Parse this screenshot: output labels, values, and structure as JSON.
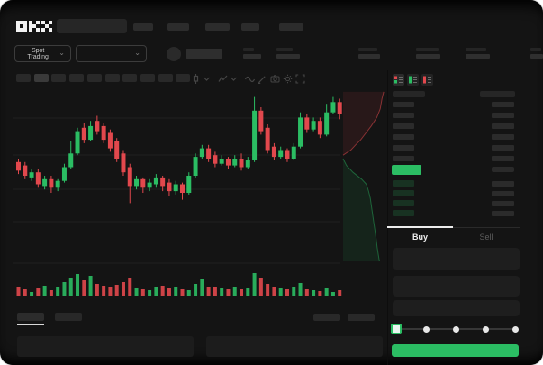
{
  "app": {
    "brand": "OKX",
    "theme": "dark",
    "accent_green": "#2bbd63",
    "accent_red": "#e2484d"
  },
  "header": {
    "logo": "OKX",
    "search_placeholder": "",
    "nav_placeholder_count": 5
  },
  "ticker_bar": {
    "market_selector_label": "Spot Trading",
    "pair_selector_value": "",
    "stat_placeholder_count": 6
  },
  "chart_toolbar": {
    "timeframe_slots": 10,
    "active_slot_index": 1,
    "icons": [
      "candle-type-icon",
      "chevron-down-icon",
      "indicators-icon",
      "chevron-down-icon",
      "line-tool-icon",
      "draw-icon",
      "camera-icon",
      "settings-icon",
      "fullscreen-icon"
    ]
  },
  "order_book": {
    "view_icons": [
      "combined-book-icon",
      "bids-only-icon",
      "asks-only-icon"
    ],
    "ask_row_count": 6,
    "bid_row_count": 4,
    "last_price": {
      "highlighted": true,
      "highlight_color": "#2bbd63"
    }
  },
  "trade_form": {
    "tabs": [
      {
        "label": "Buy",
        "active": true
      },
      {
        "label": "Sell",
        "active": false
      }
    ],
    "field_count": 3,
    "slider": {
      "steps": 5,
      "value_step": 0
    },
    "submit_label": ""
  },
  "bottom_bar": {
    "tab_placeholder_count": 2,
    "active_tab_index": 0,
    "right_control_count": 2,
    "panel_count": 2
  },
  "chart_data": {
    "type": "candlestick",
    "title": "",
    "xlabel": "time (tick labels not visible)",
    "ylabel": "price (tick labels not visible)",
    "legend": "none",
    "grid": "faint horizontal lines",
    "colors": {
      "up": "#2bbd63",
      "down": "#e2484d"
    },
    "price_scale_note": "relative 0-100 scale; axis values not shown in screenshot",
    "candles": [
      [
        58,
        60,
        51,
        53
      ],
      [
        56,
        58,
        48,
        50
      ],
      [
        49,
        54,
        47,
        52
      ],
      [
        52,
        54,
        43,
        45
      ],
      [
        44,
        50,
        42,
        48
      ],
      [
        48,
        50,
        40,
        43
      ],
      [
        43,
        48,
        41,
        47
      ],
      [
        47,
        57,
        46,
        55
      ],
      [
        55,
        70,
        54,
        63
      ],
      [
        63,
        78,
        62,
        76
      ],
      [
        78,
        81,
        69,
        71
      ],
      [
        71,
        82,
        70,
        79
      ],
      [
        82,
        85,
        74,
        76
      ],
      [
        79,
        81,
        69,
        71
      ],
      [
        75,
        77,
        64,
        66
      ],
      [
        70,
        72,
        58,
        60
      ],
      [
        63,
        65,
        50,
        52
      ],
      [
        55,
        57,
        34,
        44
      ],
      [
        44,
        50,
        42,
        48
      ],
      [
        48,
        49,
        40,
        43
      ],
      [
        43,
        48,
        41,
        46
      ],
      [
        45,
        51,
        43,
        49
      ],
      [
        49,
        50,
        41,
        44
      ],
      [
        46,
        48,
        38,
        41
      ],
      [
        41,
        47,
        39,
        45
      ],
      [
        45,
        46,
        36,
        40
      ],
      [
        40,
        52,
        39,
        50
      ],
      [
        50,
        63,
        49,
        61
      ],
      [
        61,
        68,
        60,
        66
      ],
      [
        66,
        68,
        58,
        60
      ],
      [
        62,
        64,
        55,
        57
      ],
      [
        57,
        62,
        56,
        60
      ],
      [
        60,
        61,
        54,
        56
      ],
      [
        56,
        62,
        55,
        60
      ],
      [
        60,
        63,
        53,
        55
      ],
      [
        55,
        61,
        54,
        59
      ],
      [
        59,
        96,
        58,
        88
      ],
      [
        88,
        90,
        74,
        76
      ],
      [
        78,
        80,
        63,
        65
      ],
      [
        67,
        69,
        59,
        61
      ],
      [
        61,
        67,
        60,
        65
      ],
      [
        65,
        66,
        58,
        60
      ],
      [
        60,
        69,
        59,
        67
      ],
      [
        67,
        87,
        66,
        84
      ],
      [
        84,
        86,
        75,
        77
      ],
      [
        77,
        84,
        76,
        82
      ],
      [
        82,
        84,
        72,
        74
      ],
      [
        74,
        92,
        73,
        87
      ],
      [
        87,
        96,
        86,
        93
      ],
      [
        93,
        95,
        83,
        86
      ]
    ],
    "volumes": [
      9,
      7,
      4,
      8,
      11,
      6,
      10,
      15,
      20,
      24,
      17,
      22,
      13,
      11,
      9,
      12,
      15,
      19,
      8,
      7,
      6,
      9,
      11,
      8,
      10,
      7,
      6,
      13,
      18,
      10,
      9,
      8,
      7,
      9,
      7,
      8,
      25,
      19,
      13,
      10,
      8,
      7,
      9,
      14,
      7,
      6,
      5,
      8,
      4,
      6
    ],
    "depth_overlay": {
      "orientation": "vertical, right edge of chart",
      "asks": [
        [
          0.96,
          0.01
        ],
        [
          0.92,
          0.05
        ],
        [
          0.88,
          0.11
        ],
        [
          0.8,
          0.16
        ],
        [
          0.67,
          0.21
        ],
        [
          0.55,
          0.25
        ],
        [
          0.43,
          0.29
        ],
        [
          0.31,
          0.32
        ],
        [
          0.2,
          0.35
        ],
        [
          0.08,
          0.37
        ],
        [
          0.02,
          0.38
        ]
      ],
      "bids": [
        [
          0.02,
          0.4
        ],
        [
          0.1,
          0.44
        ],
        [
          0.25,
          0.48
        ],
        [
          0.45,
          0.52
        ],
        [
          0.56,
          0.55
        ],
        [
          0.61,
          0.59
        ],
        [
          0.65,
          0.63
        ],
        [
          0.69,
          0.7
        ],
        [
          0.73,
          0.77
        ],
        [
          0.77,
          0.84
        ],
        [
          0.81,
          0.92
        ],
        [
          0.86,
          1.0
        ]
      ]
    }
  }
}
